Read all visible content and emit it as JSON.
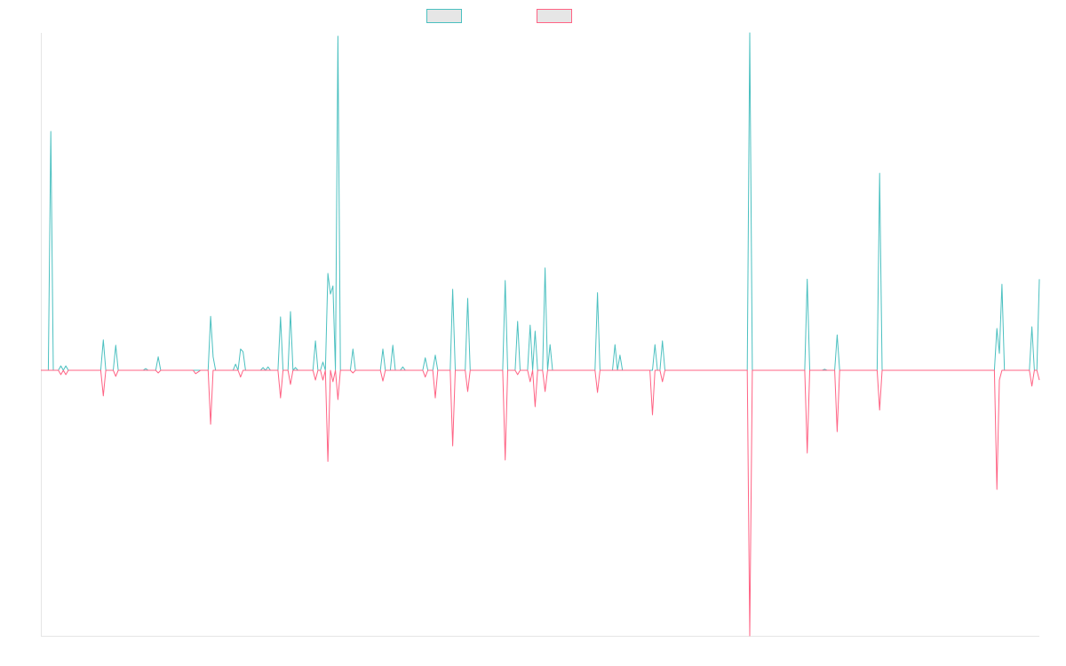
{
  "chart_data": {
    "type": "line",
    "title": "",
    "xlabel": "",
    "ylabel": "",
    "xlim": [
      0,
      400
    ],
    "ylim": [
      -78.7,
      100
    ],
    "grid": false,
    "legend_placement": "top-center",
    "series": [
      {
        "name": "",
        "color": "#4bc0c0",
        "points": [
          [
            4,
            70.8
          ],
          [
            8,
            1.3
          ],
          [
            10,
            1.3
          ],
          [
            25,
            9
          ],
          [
            30,
            7.4
          ],
          [
            42,
            0.5
          ],
          [
            47,
            4
          ],
          [
            68,
            16
          ],
          [
            69,
            4
          ],
          [
            78,
            1.8
          ],
          [
            80,
            6.3
          ],
          [
            81,
            5.5
          ],
          [
            89,
            0.8
          ],
          [
            91,
            1
          ],
          [
            96,
            15.8
          ],
          [
            100,
            17.4
          ],
          [
            102,
            0.8
          ],
          [
            110,
            8.7
          ],
          [
            113,
            2.4
          ],
          [
            115,
            28.7
          ],
          [
            116,
            22.6
          ],
          [
            117,
            25
          ],
          [
            119,
            99
          ],
          [
            125,
            6.3
          ],
          [
            137,
            6.3
          ],
          [
            141,
            7.4
          ],
          [
            145,
            1
          ],
          [
            154,
            3.7
          ],
          [
            158,
            4.5
          ],
          [
            165,
            24
          ],
          [
            171,
            21.3
          ],
          [
            186,
            26.6
          ],
          [
            191,
            14.5
          ],
          [
            196,
            13.4
          ],
          [
            198,
            11.6
          ],
          [
            202,
            30.3
          ],
          [
            204,
            7.6
          ],
          [
            223,
            23
          ],
          [
            230,
            7.6
          ],
          [
            232,
            4.5
          ],
          [
            246,
            7.6
          ],
          [
            249,
            8.7
          ],
          [
            284,
            100
          ],
          [
            307,
            27
          ],
          [
            314,
            0.3
          ],
          [
            319,
            10.5
          ],
          [
            336,
            58.4
          ],
          [
            383,
            12.4
          ],
          [
            384,
            5
          ],
          [
            385,
            25.5
          ],
          [
            397,
            12.9
          ],
          [
            400,
            27
          ]
        ]
      },
      {
        "name": "",
        "color": "#ff6384",
        "points": [
          [
            8,
            -1.3
          ],
          [
            10,
            -1.3
          ],
          [
            25,
            -7.6
          ],
          [
            30,
            -1.8
          ],
          [
            47,
            -0.8
          ],
          [
            62,
            -1
          ],
          [
            63,
            -0.5
          ],
          [
            68,
            -16
          ],
          [
            80,
            -2
          ],
          [
            96,
            -8.2
          ],
          [
            100,
            -4.2
          ],
          [
            110,
            -2.9
          ],
          [
            113,
            -2.9
          ],
          [
            115,
            -27
          ],
          [
            117,
            -3.4
          ],
          [
            119,
            -8.7
          ],
          [
            125,
            -0.8
          ],
          [
            137,
            -3.2
          ],
          [
            154,
            -2
          ],
          [
            158,
            -8.2
          ],
          [
            165,
            -22.4
          ],
          [
            171,
            -6.3
          ],
          [
            186,
            -26.6
          ],
          [
            191,
            -1.3
          ],
          [
            196,
            -3.4
          ],
          [
            198,
            -10.8
          ],
          [
            202,
            -6.3
          ],
          [
            223,
            -6.6
          ],
          [
            245,
            -13.2
          ],
          [
            249,
            -3.4
          ],
          [
            284,
            -78.7
          ],
          [
            307,
            -24.5
          ],
          [
            319,
            -18.2
          ],
          [
            336,
            -11.8
          ],
          [
            383,
            -35.3
          ],
          [
            384,
            -2.9
          ],
          [
            397,
            -4.7
          ],
          [
            400,
            -2.9
          ]
        ]
      }
    ]
  }
}
